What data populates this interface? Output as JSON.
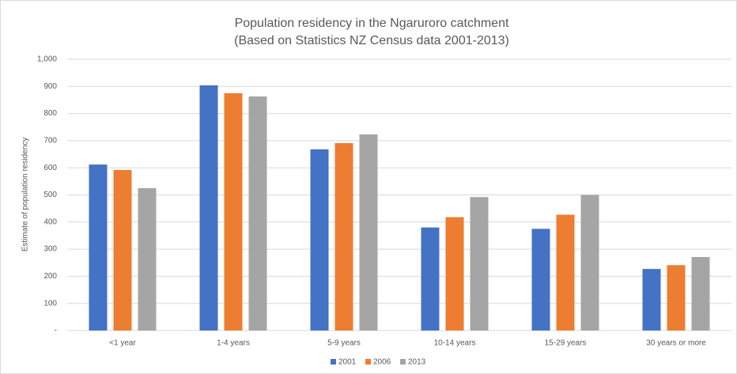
{
  "chart_data": {
    "type": "bar",
    "title": "Population residency in the Ngaruroro catchment",
    "subtitle": "(Based on Statistics NZ Census data 2001-2013)",
    "y_label": "Estimate of population residency",
    "categories": [
      "<1 year",
      "1-4 years",
      "5-9 years",
      "10-14 years",
      "15-29 years",
      "30 years or more"
    ],
    "series": [
      {
        "name": "2001",
        "color": "#4472c4",
        "values": [
          612,
          904,
          668,
          380,
          375,
          227
        ]
      },
      {
        "name": "2006",
        "color": "#ed7d31",
        "values": [
          592,
          875,
          691,
          418,
          427,
          241
        ]
      },
      {
        "name": "2013",
        "color": "#a5a5a5",
        "values": [
          525,
          863,
          723,
          492,
          500,
          271
        ]
      }
    ],
    "ylim": [
      0,
      1000
    ],
    "yticks": [
      {
        "value": 0,
        "label": "-"
      },
      100,
      200,
      300,
      400,
      500,
      600,
      700,
      800,
      900,
      {
        "value": 1000,
        "label": "1,000"
      }
    ],
    "grid": true,
    "legend": "bottom"
  }
}
